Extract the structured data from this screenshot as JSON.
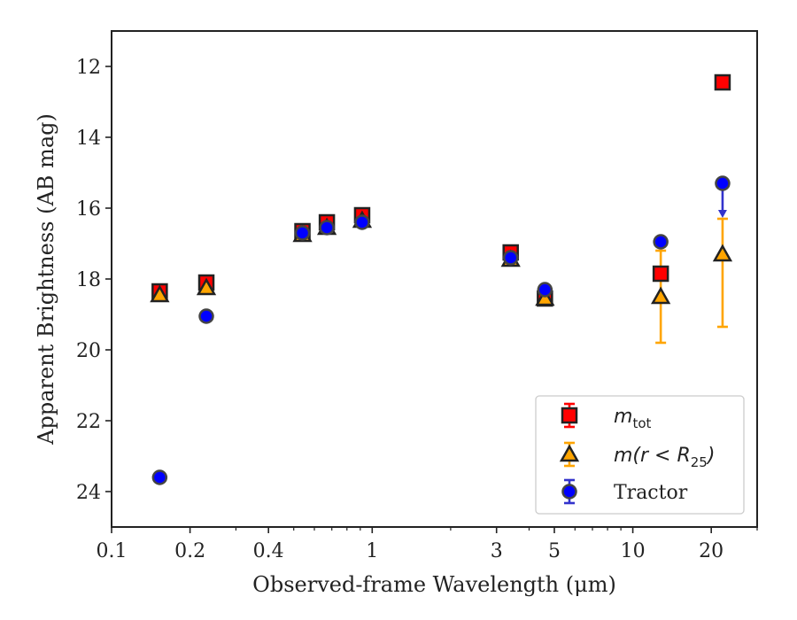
{
  "chart_data": {
    "type": "scatter",
    "xlabel": "Observed-frame Wavelength (μm)",
    "ylabel": "Apparent Brightness (AB mag)",
    "xscale": "log",
    "xlim": [
      0.1,
      30
    ],
    "ylim": [
      25,
      11
    ],
    "y_inverted": true,
    "x_ticks": [
      0.1,
      0.2,
      0.4,
      1,
      3,
      5,
      10,
      20
    ],
    "x_tick_labels": [
      "0.1",
      "0.2",
      "0.4",
      "1",
      "3",
      "5",
      "10",
      "20"
    ],
    "y_ticks": [
      12,
      14,
      16,
      18,
      20,
      22,
      24
    ],
    "y_tick_labels": [
      "12",
      "14",
      "16",
      "18",
      "20",
      "22",
      "24"
    ],
    "grid": false,
    "legend_position": "bottom-right",
    "colors": {
      "m_tot": "#ff0000",
      "m_r25": "#ffa500",
      "tractor": "#0000ff",
      "tractor_err": "#3333cc",
      "axis": "#222222"
    },
    "series": [
      {
        "name": "m_tot",
        "legend_base": "m",
        "legend_sub": "tot",
        "marker": "square",
        "points": [
          {
            "x": 0.153,
            "y": 18.35,
            "err": 0.05
          },
          {
            "x": 0.231,
            "y": 18.1,
            "err": 0.05
          },
          {
            "x": 0.54,
            "y": 16.65,
            "err": 0.05
          },
          {
            "x": 0.67,
            "y": 16.4,
            "err": 0.05
          },
          {
            "x": 0.915,
            "y": 16.2,
            "err": 0.05
          },
          {
            "x": 3.4,
            "y": 17.25,
            "err": 0.05
          },
          {
            "x": 4.6,
            "y": 18.55,
            "err": 0.05
          },
          {
            "x": 12.8,
            "y": 17.85,
            "err": 0.05
          },
          {
            "x": 22.1,
            "y": 12.45,
            "err": 0.05
          }
        ]
      },
      {
        "name": "m(r < R25)",
        "legend_base": "m(r < R",
        "legend_sub": "25",
        "legend_close": ")",
        "marker": "triangle",
        "points": [
          {
            "x": 0.153,
            "y": 18.45,
            "err": 0.05
          },
          {
            "x": 0.231,
            "y": 18.25,
            "err": 0.05
          },
          {
            "x": 0.54,
            "y": 16.75,
            "err": 0.05
          },
          {
            "x": 0.67,
            "y": 16.55,
            "err": 0.05
          },
          {
            "x": 0.915,
            "y": 16.35,
            "err": 0.05
          },
          {
            "x": 3.4,
            "y": 17.45,
            "err": 0.05
          },
          {
            "x": 4.6,
            "y": 18.55,
            "err": 0.05
          },
          {
            "x": 12.8,
            "y": 18.5,
            "err_up": 1.3,
            "err_down": 1.3
          },
          {
            "x": 22.1,
            "y": 17.3,
            "err_up": 1.0,
            "err_down": 2.05
          }
        ]
      },
      {
        "name": "Tractor",
        "marker": "circle",
        "points": [
          {
            "x": 0.153,
            "y": 23.6,
            "err": 0.05
          },
          {
            "x": 0.231,
            "y": 19.05,
            "err": 0.05
          },
          {
            "x": 0.54,
            "y": 16.7,
            "err": 0.05
          },
          {
            "x": 0.67,
            "y": 16.55,
            "err": 0.05
          },
          {
            "x": 0.915,
            "y": 16.4,
            "err": 0.05
          },
          {
            "x": 3.4,
            "y": 17.4,
            "err": 0.05
          },
          {
            "x": 4.6,
            "y": 18.3,
            "err": 0.05
          },
          {
            "x": 12.8,
            "y": 16.95,
            "err": 0.05
          },
          {
            "x": 22.1,
            "y": 15.3,
            "upper_limit_arrow_to": 16.2
          }
        ]
      }
    ]
  }
}
